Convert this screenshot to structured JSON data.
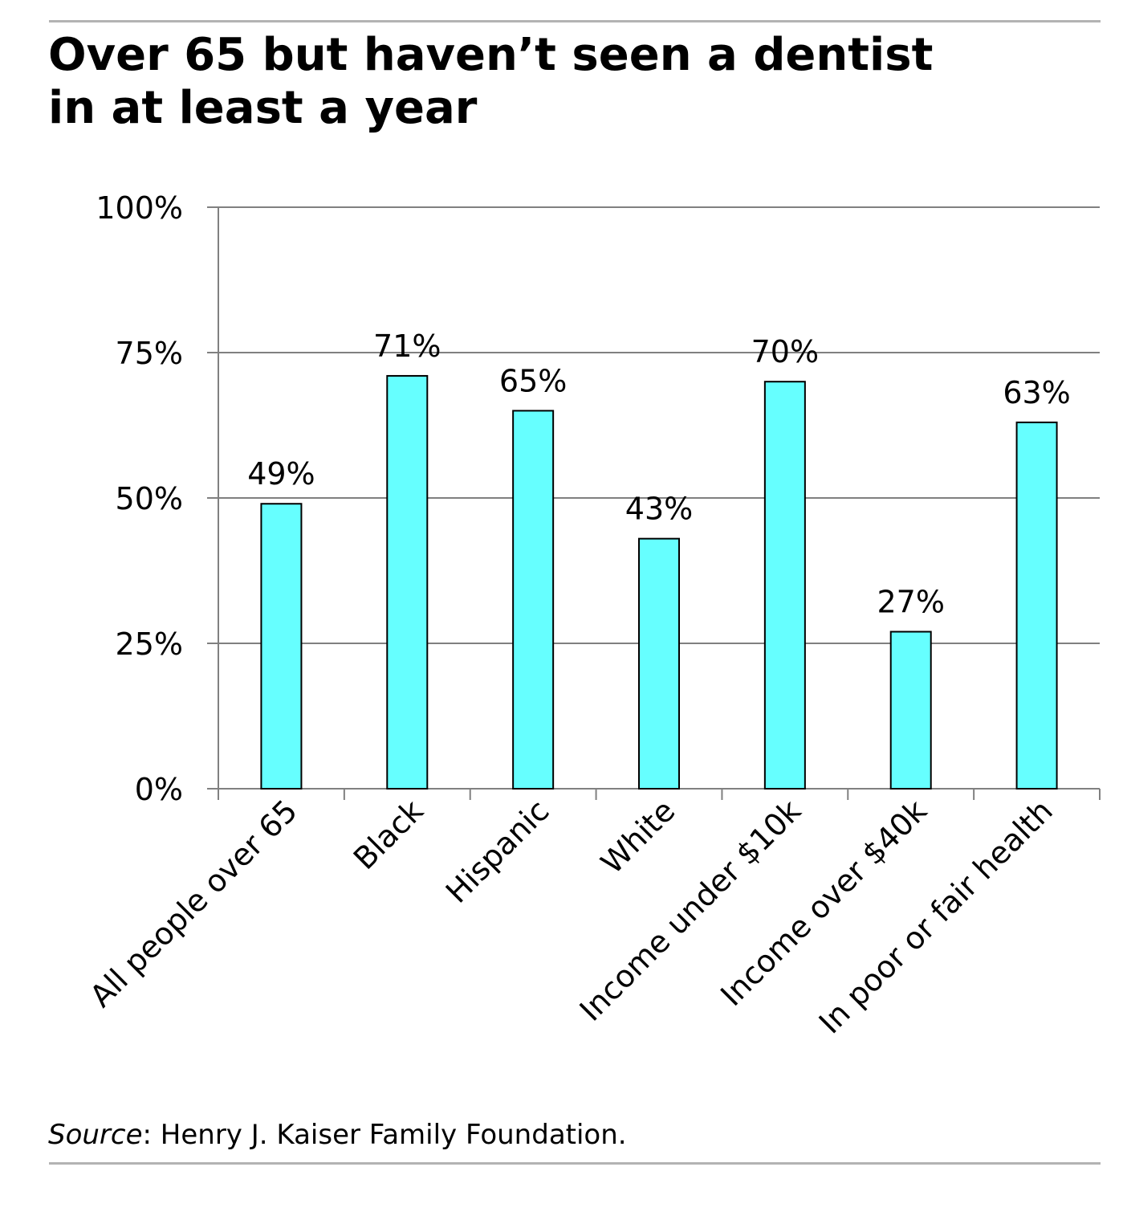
{
  "title_lines": [
    "Over 65 but haven’t seen a dentist",
    "in at least a year"
  ],
  "source": {
    "label": "Source",
    "text": ": Henry J. Kaiser Family Foundation."
  },
  "colors": {
    "bar": "#66ffff",
    "bar_outline": "#000000",
    "grid": "#808080",
    "rule": "#b3b3b3"
  },
  "chart_data": {
    "type": "bar",
    "title": "Over 65 but haven’t seen a dentist in at least a year",
    "xlabel": "",
    "ylabel": "",
    "categories": [
      "All people over 65",
      "Black",
      "Hispanic",
      "White",
      "Income under $10k",
      "Income over $40k",
      "In poor or fair health"
    ],
    "values": [
      49,
      71,
      65,
      43,
      70,
      27,
      63
    ],
    "data_labels": [
      "49%",
      "71%",
      "65%",
      "43%",
      "70%",
      "27%",
      "63%"
    ],
    "ylim": [
      0,
      100
    ],
    "yticks": [
      0,
      25,
      50,
      75,
      100
    ],
    "ytick_labels": [
      "0%",
      "25%",
      "50%",
      "75%",
      "100%"
    ],
    "grid": true,
    "legend": "none"
  }
}
